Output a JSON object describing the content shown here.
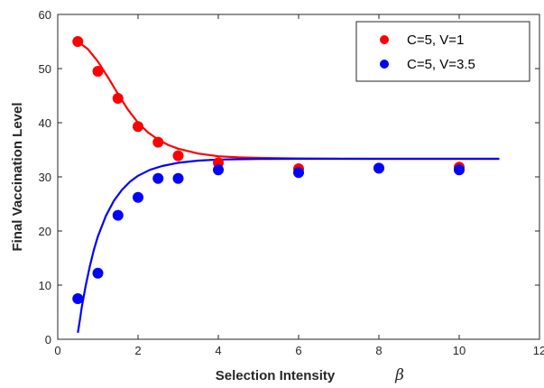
{
  "chart_data": {
    "type": "scatter",
    "title": "",
    "xlabel": "Selection Intensity",
    "xlabel_symbol": "β",
    "ylabel": "Final Vaccination Level",
    "xlim": [
      0,
      12
    ],
    "ylim": [
      0,
      60
    ],
    "xticks": [
      0,
      2,
      4,
      6,
      8,
      10,
      12
    ],
    "yticks": [
      0,
      10,
      20,
      30,
      40,
      50,
      60
    ],
    "grid": false,
    "legend_position": "top-right",
    "series": [
      {
        "name": "C=5, V=1",
        "color": "#ff0000",
        "points": {
          "x": [
            0.5,
            1,
            1.5,
            2,
            2.5,
            3,
            4,
            6,
            8,
            10
          ],
          "y": [
            55,
            49.5,
            44.5,
            39.3,
            36.4,
            33.9,
            32.6,
            31.5,
            31.6,
            31.8
          ]
        },
        "curve": {
          "x": [
            0.5,
            0.75,
            1,
            1.25,
            1.5,
            1.75,
            2,
            2.25,
            2.5,
            2.75,
            3,
            3.5,
            4,
            4.5,
            5,
            6,
            7,
            8,
            9,
            10,
            11
          ],
          "y": [
            55,
            53.6,
            51.3,
            48.4,
            45.3,
            42.4,
            40.0,
            38.2,
            36.9,
            35.9,
            35.2,
            34.3,
            33.8,
            33.6,
            33.5,
            33.4,
            33.35,
            33.33,
            33.33,
            33.33,
            33.33
          ]
        }
      },
      {
        "name": "C=5, V=3.5",
        "color": "#0000ff",
        "points": {
          "x": [
            0.5,
            1,
            1.5,
            2,
            2.5,
            3,
            4,
            6,
            8,
            10
          ],
          "y": [
            7.5,
            12.2,
            22.9,
            26.2,
            29.7,
            29.7,
            31.3,
            30.8,
            31.6,
            31.3
          ]
        },
        "curve": {
          "x": [
            0.5,
            0.55,
            0.6,
            0.7,
            0.8,
            0.9,
            1.0,
            1.2,
            1.4,
            1.6,
            1.8,
            2.0,
            2.3,
            2.6,
            3.0,
            3.5,
            4.0,
            5.0,
            6.0,
            8.0,
            11.0
          ],
          "y": [
            1.2,
            3.5,
            6.0,
            10.0,
            13.5,
            16.5,
            19.0,
            22.8,
            25.6,
            27.6,
            29.1,
            30.2,
            31.3,
            32.0,
            32.6,
            33.0,
            33.2,
            33.3,
            33.33,
            33.33,
            33.33
          ]
        }
      }
    ]
  }
}
